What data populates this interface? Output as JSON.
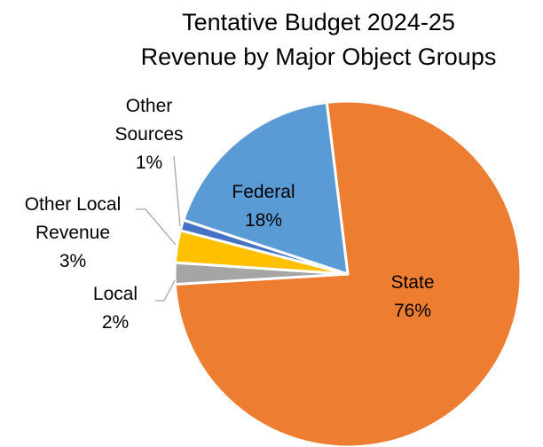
{
  "chart_data": {
    "type": "pie",
    "title": [
      "Tentative Budget 2024-25",
      "Revenue by Major Object Groups"
    ],
    "slices": [
      {
        "label": [
          "State"
        ],
        "percent_label": "76%",
        "value": 76,
        "color": "#ed7d31"
      },
      {
        "label": [
          "Local"
        ],
        "percent_label": "2%",
        "value": 2,
        "color": "#a5a5a5"
      },
      {
        "label": [
          "Other Local",
          "Revenue"
        ],
        "percent_label": "3%",
        "value": 3,
        "color": "#ffc000"
      },
      {
        "label": [
          "Other",
          "Sources"
        ],
        "percent_label": "1%",
        "value": 1,
        "color": "#4472c4"
      },
      {
        "label": [
          "Federal"
        ],
        "percent_label": "18%",
        "value": 18,
        "color": "#5b9bd5"
      }
    ],
    "legend": "none"
  }
}
